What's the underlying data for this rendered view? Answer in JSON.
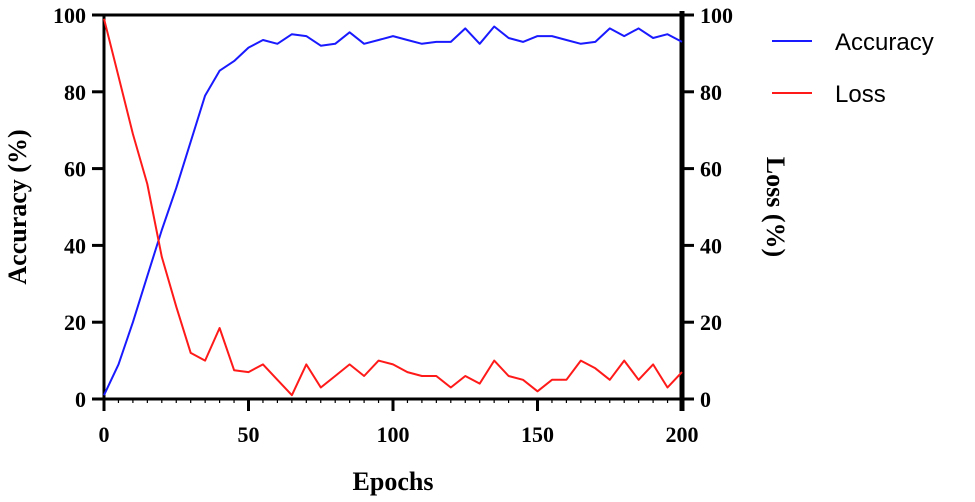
{
  "chart_data": {
    "type": "line",
    "title": "",
    "xlabel": "Epochs",
    "ylabel": "Accuracy (%)",
    "y2label": "Loss (%)",
    "xlim": [
      0,
      200
    ],
    "ylim": [
      0,
      100
    ],
    "y2lim": [
      0,
      100
    ],
    "x_ticks": [
      0,
      50,
      100,
      150,
      200
    ],
    "y_ticks": [
      0,
      20,
      40,
      60,
      80,
      100
    ],
    "y2_ticks": [
      0,
      20,
      40,
      60,
      80,
      100
    ],
    "grid": false,
    "legend_position": "upper right, outside plot",
    "x": [
      0,
      5,
      10,
      15,
      20,
      25,
      30,
      35,
      40,
      45,
      50,
      55,
      60,
      65,
      70,
      75,
      80,
      85,
      90,
      95,
      100,
      105,
      110,
      115,
      120,
      125,
      130,
      135,
      140,
      145,
      150,
      155,
      160,
      165,
      170,
      175,
      180,
      185,
      190,
      195,
      200
    ],
    "series": [
      {
        "name": "Accuracy",
        "axis": "left",
        "color": "#1a1aff",
        "values": [
          1,
          9,
          20,
          32,
          44,
          55,
          67,
          79,
          85.5,
          88,
          91.5,
          93.5,
          92.5,
          95,
          94.5,
          92,
          92.5,
          95.5,
          92.5,
          93.5,
          94.5,
          93.5,
          92.5,
          93,
          93,
          96.5,
          92.5,
          97,
          94,
          93,
          94.5,
          94.5,
          93.5,
          92.5,
          93,
          96.5,
          94.5,
          96.5,
          94,
          95,
          93
        ]
      },
      {
        "name": "Loss",
        "axis": "right",
        "color": "#ff1a1a",
        "values": [
          99,
          84,
          69,
          56,
          37,
          24,
          12,
          10,
          18.5,
          7.5,
          7,
          9,
          5,
          1,
          9,
          3,
          6,
          9,
          6,
          10,
          9,
          7,
          6,
          6,
          3,
          6,
          4,
          10,
          6,
          5,
          2,
          5,
          5,
          10,
          8,
          5,
          10,
          5,
          9,
          3,
          7
        ]
      }
    ]
  },
  "legend": {
    "items": [
      {
        "label": "Accuracy",
        "color": "#1a1aff"
      },
      {
        "label": "Loss",
        "color": "#ff1a1a"
      }
    ]
  }
}
